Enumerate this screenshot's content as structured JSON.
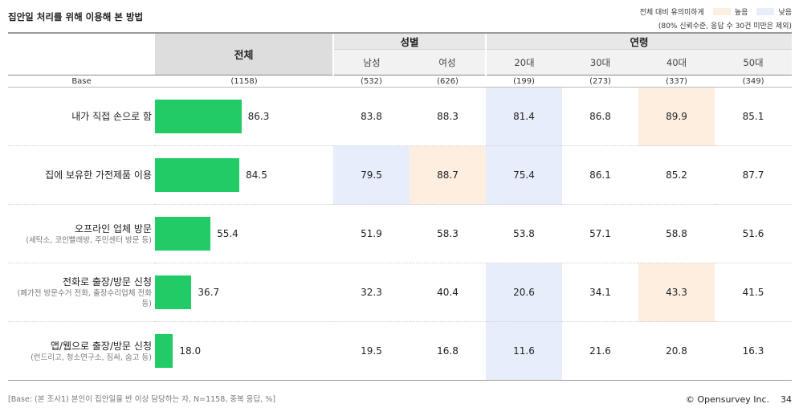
{
  "title": "집안일 처리를 위해 이용해 본 방법",
  "legend": {
    "caption": "전체 대비 유의미하게",
    "high_label": "높음",
    "low_label": "낮음",
    "high_color": "#fdeee0",
    "low_color": "#e8edfb",
    "note": "(80% 신뢰수준, 응답 수 30건 미만은 제외)"
  },
  "header": {
    "total": "전체",
    "gender_group": "성별",
    "age_group": "연령",
    "base_label": "Base",
    "columns": [
      "남성",
      "여성",
      "20대",
      "30대",
      "40대",
      "50대"
    ]
  },
  "base": {
    "total": "(1158)",
    "columns": [
      "(532)",
      "(626)",
      "(199)",
      "(273)",
      "(337)",
      "(349)"
    ]
  },
  "chart_data": {
    "type": "bar",
    "orientation": "horizontal",
    "title": "집안일 처리를 위해 이용해 본 방법",
    "unit": "%",
    "xlim": [
      0,
      100
    ],
    "bar_color": "#21cc66",
    "categories": [
      "내가 직접 손으로 함",
      "집에 보유한 가전제품 이용",
      "오프라인 업체 방문",
      "전화로 출장/방문 신청",
      "앱/웹으로 출장/방문 신청"
    ],
    "values": [
      86.3,
      84.5,
      55.4,
      36.7,
      18.0
    ]
  },
  "rows": [
    {
      "label": "내가 직접 손으로 함",
      "sub": "",
      "total": "86.3",
      "values": [
        "83.8",
        "88.3",
        "81.4",
        "86.8",
        "89.9",
        "85.1"
      ],
      "sig": [
        "",
        "",
        "low",
        "",
        "high",
        ""
      ]
    },
    {
      "label": "집에 보유한 가전제품 이용",
      "sub": "",
      "total": "84.5",
      "values": [
        "79.5",
        "88.7",
        "75.4",
        "86.1",
        "85.2",
        "87.7"
      ],
      "sig": [
        "low",
        "high",
        "low",
        "",
        "",
        ""
      ]
    },
    {
      "label": "오프라인 업체 방문",
      "sub": "(세탁소, 코인빨래방, 주민센터 방문 등)",
      "total": "55.4",
      "values": [
        "51.9",
        "58.3",
        "53.8",
        "57.1",
        "58.8",
        "51.6"
      ],
      "sig": [
        "",
        "",
        "",
        "",
        "",
        ""
      ]
    },
    {
      "label": "전화로 출장/방문 신청",
      "sub": "(폐가전 방문수거 전화, 출장수리업체 전화 등)",
      "total": "36.7",
      "values": [
        "32.3",
        "40.4",
        "20.6",
        "34.1",
        "43.3",
        "41.5"
      ],
      "sig": [
        "",
        "",
        "low",
        "",
        "high",
        ""
      ]
    },
    {
      "label": "앱/웹으로 출장/방문 신청",
      "sub": "(런드리고, 청소연구소, 짐싸, 숨고 등)",
      "total": "18.0",
      "values": [
        "19.5",
        "16.8",
        "11.6",
        "21.6",
        "20.8",
        "16.3"
      ],
      "sig": [
        "",
        "",
        "low",
        "",
        "",
        ""
      ]
    }
  ],
  "footnote": "[Base: (본 조사1) 본인이 집안일을 반 이상 담당하는 자, N=1158, 중복 응답, %]",
  "brand": "© Opensurvey Inc.",
  "page_number": "34"
}
